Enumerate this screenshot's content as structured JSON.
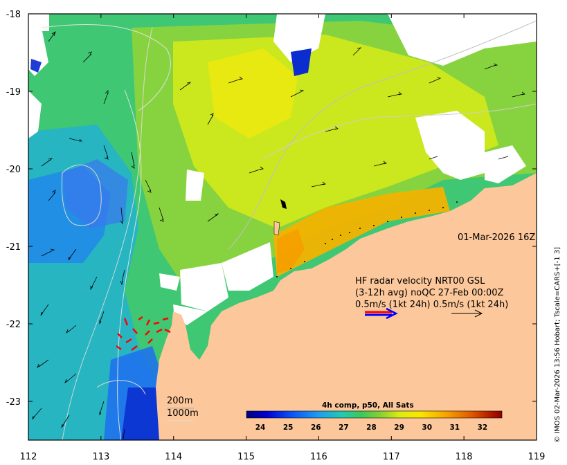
{
  "map": {
    "date_label": "01-Mar-2026 16Z",
    "credit": "© IMOS 02-Mar-2026 13:56 Hobart; Tscale=CARS+[-1 3]",
    "x_axis": {
      "ticks": [
        "112",
        "113",
        "114",
        "115",
        "116",
        "117",
        "118",
        "119"
      ],
      "range": [
        112,
        119
      ]
    },
    "y_axis": {
      "ticks": [
        "-18",
        "-19",
        "-20",
        "-21",
        "-22",
        "-23"
      ],
      "range": [
        -23.5,
        -18
      ]
    },
    "annotation": {
      "line1": "HF radar velocity  NRT00 GSL",
      "line2": "(3-12h avg) noQC 27-Feb 00:00Z",
      "line3": "0.5m/s (1kt 24h)  0.5m/s (1kt 24h)"
    },
    "isobaths": {
      "line1": "200m",
      "line2": "1000m"
    },
    "colorbar": {
      "title": "4h comp, p50, All Sats",
      "labels": [
        "24",
        "25",
        "26",
        "27",
        "28",
        "29",
        "30",
        "31",
        "32"
      ],
      "range": [
        23.5,
        32.7
      ]
    },
    "colors": {
      "land": "#fcc79a",
      "hf_arrow_red": "#ff0000",
      "hf_arrow_blue": "#0000ff",
      "colormap": [
        "#00007f",
        "#0000d0",
        "#0a4df5",
        "#1e9bf0",
        "#23c8b4",
        "#3cc85a",
        "#8cd232",
        "#dceb14",
        "#fbe600",
        "#f6a500",
        "#e05a00",
        "#b41e00",
        "#8c0000"
      ]
    }
  }
}
